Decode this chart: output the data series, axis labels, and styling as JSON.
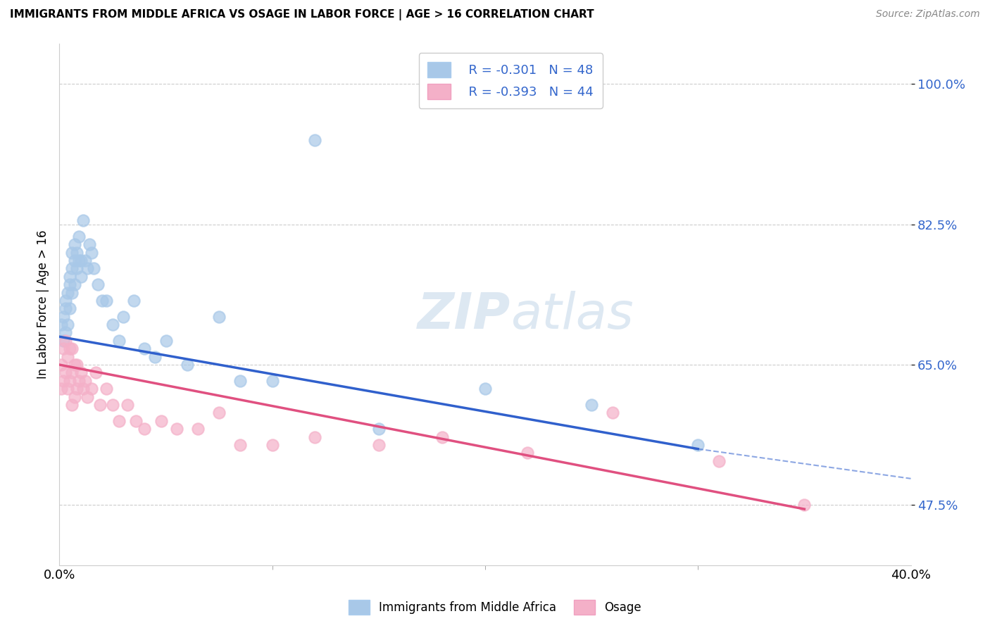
{
  "title": "IMMIGRANTS FROM MIDDLE AFRICA VS OSAGE IN LABOR FORCE | AGE > 16 CORRELATION CHART",
  "source": "Source: ZipAtlas.com",
  "ylabel": "In Labor Force | Age > 16",
  "y_ticks": [
    0.475,
    0.65,
    0.825,
    1.0
  ],
  "y_tick_labels": [
    "47.5%",
    "65.0%",
    "82.5%",
    "100.0%"
  ],
  "xlim": [
    0.0,
    0.4
  ],
  "ylim": [
    0.4,
    1.05
  ],
  "legend1_R": "-0.301",
  "legend1_N": "48",
  "legend2_R": "-0.393",
  "legend2_N": "44",
  "blue_color": "#a8c8e8",
  "pink_color": "#f4b0c8",
  "blue_line_color": "#3060cc",
  "pink_line_color": "#e05080",
  "blue_scatter_alpha": 0.7,
  "pink_scatter_alpha": 0.7,
  "blue_x": [
    0.001,
    0.002,
    0.002,
    0.003,
    0.003,
    0.003,
    0.004,
    0.004,
    0.005,
    0.005,
    0.005,
    0.006,
    0.006,
    0.006,
    0.007,
    0.007,
    0.007,
    0.008,
    0.008,
    0.009,
    0.009,
    0.01,
    0.01,
    0.011,
    0.012,
    0.013,
    0.014,
    0.015,
    0.016,
    0.018,
    0.02,
    0.022,
    0.025,
    0.028,
    0.03,
    0.035,
    0.04,
    0.045,
    0.05,
    0.06,
    0.075,
    0.085,
    0.1,
    0.12,
    0.15,
    0.2,
    0.25,
    0.3
  ],
  "blue_y": [
    0.7,
    0.71,
    0.68,
    0.73,
    0.72,
    0.69,
    0.74,
    0.7,
    0.76,
    0.75,
    0.72,
    0.79,
    0.77,
    0.74,
    0.8,
    0.78,
    0.75,
    0.79,
    0.77,
    0.81,
    0.78,
    0.78,
    0.76,
    0.83,
    0.78,
    0.77,
    0.8,
    0.79,
    0.77,
    0.75,
    0.73,
    0.73,
    0.7,
    0.68,
    0.71,
    0.73,
    0.67,
    0.66,
    0.68,
    0.65,
    0.71,
    0.63,
    0.63,
    0.93,
    0.57,
    0.62,
    0.6,
    0.55
  ],
  "pink_x": [
    0.001,
    0.001,
    0.002,
    0.002,
    0.003,
    0.003,
    0.004,
    0.004,
    0.005,
    0.005,
    0.006,
    0.006,
    0.006,
    0.007,
    0.007,
    0.008,
    0.008,
    0.009,
    0.01,
    0.011,
    0.012,
    0.013,
    0.015,
    0.017,
    0.019,
    0.022,
    0.025,
    0.028,
    0.032,
    0.036,
    0.04,
    0.048,
    0.055,
    0.065,
    0.075,
    0.085,
    0.1,
    0.12,
    0.15,
    0.18,
    0.22,
    0.26,
    0.31,
    0.35
  ],
  "pink_y": [
    0.65,
    0.62,
    0.67,
    0.63,
    0.68,
    0.64,
    0.66,
    0.62,
    0.67,
    0.63,
    0.67,
    0.64,
    0.6,
    0.65,
    0.61,
    0.65,
    0.62,
    0.63,
    0.64,
    0.62,
    0.63,
    0.61,
    0.62,
    0.64,
    0.6,
    0.62,
    0.6,
    0.58,
    0.6,
    0.58,
    0.57,
    0.58,
    0.57,
    0.57,
    0.59,
    0.55,
    0.55,
    0.56,
    0.55,
    0.56,
    0.54,
    0.59,
    0.53,
    0.475
  ],
  "blue_line_x0": 0.0,
  "blue_line_x1": 0.3,
  "blue_line_x2": 0.4,
  "blue_line_y0": 0.685,
  "blue_line_y1": 0.545,
  "blue_line_y2": 0.508,
  "pink_line_x0": 0.0,
  "pink_line_x1": 0.35,
  "pink_line_y0": 0.65,
  "pink_line_y1": 0.47,
  "watermark_line1": "ZIP",
  "watermark_line2": "atlas",
  "legend_label1": "Immigrants from Middle Africa",
  "legend_label2": "Osage",
  "background_color": "#ffffff"
}
